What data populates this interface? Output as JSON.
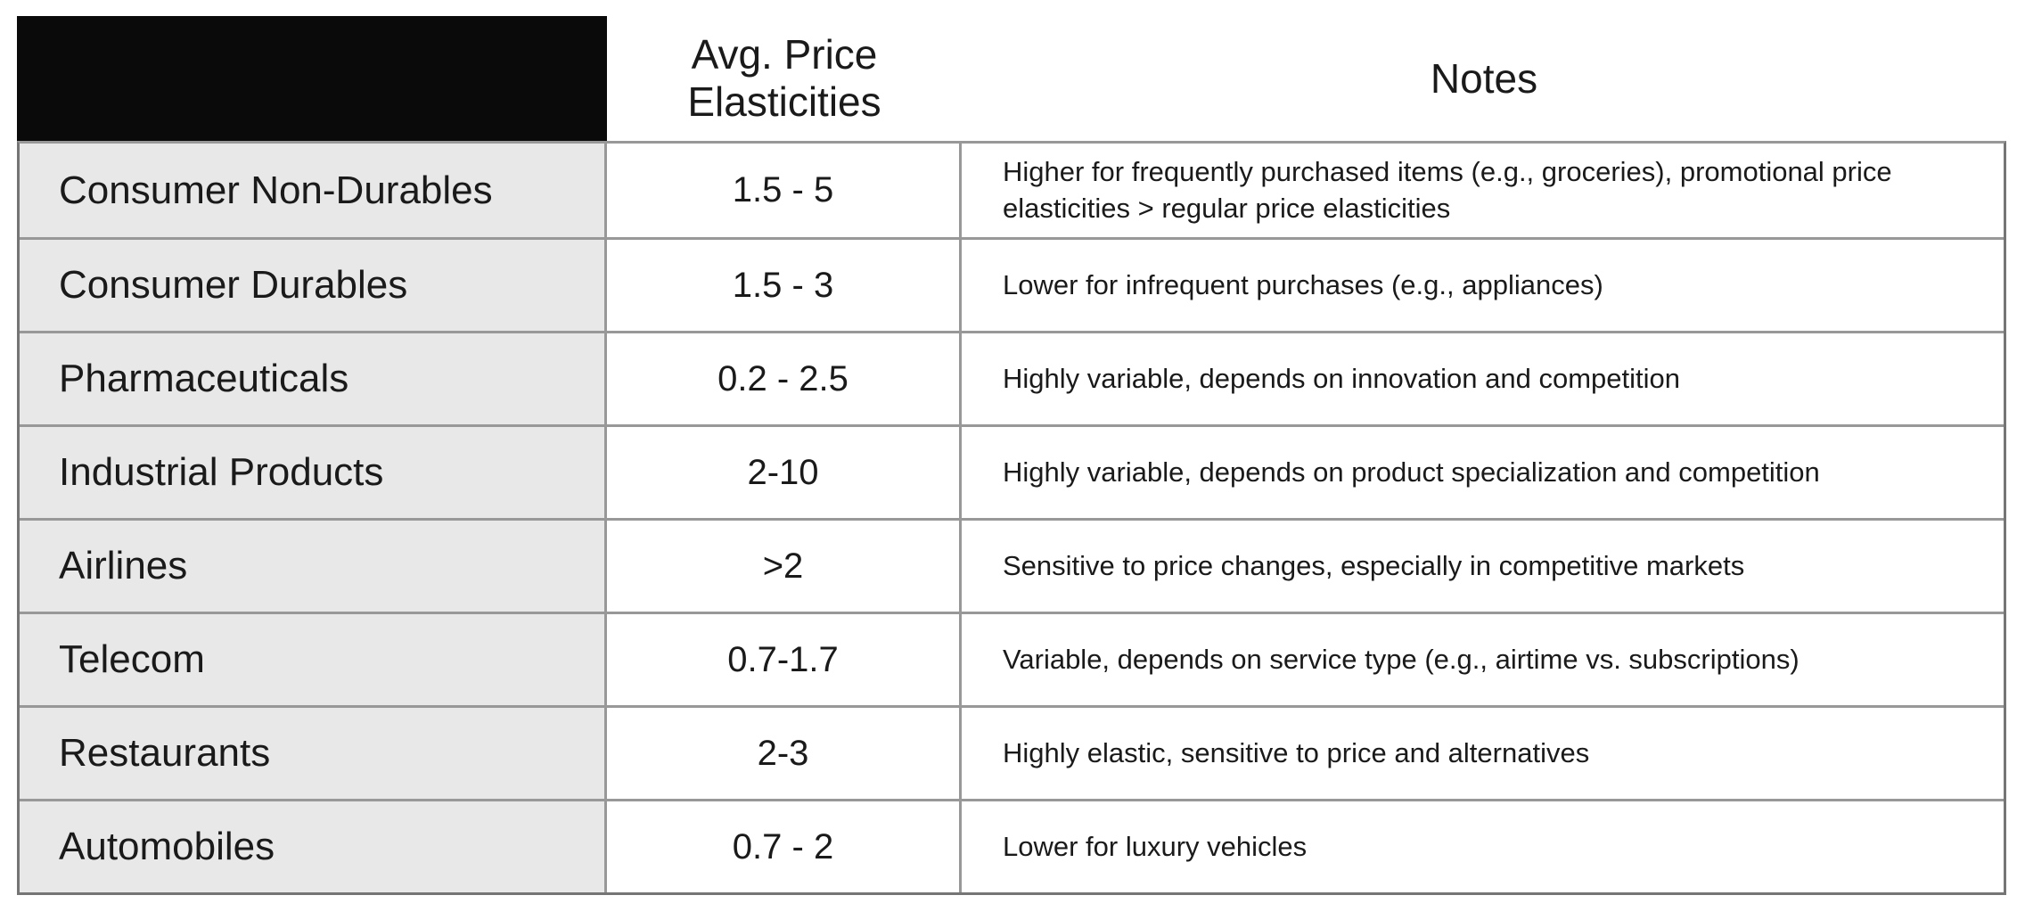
{
  "colors": {
    "header_fill": "#0a0a0a",
    "label_fill": "#e8e8e8",
    "border_inner": "#989898",
    "border_outer": "#757575",
    "text_color": "#1a1a1a",
    "page_bg": "#ffffff"
  },
  "table": {
    "header": {
      "industry_label": "",
      "elasticity_label": "Avg. Price Elasticities",
      "notes_label": "Notes"
    },
    "rows": [
      {
        "industry": "Consumer Non-Durables",
        "elasticity": "1.5 - 5",
        "notes": "Higher for frequently purchased items (e.g., groceries), promotional price elasticities > regular price elasticities"
      },
      {
        "industry": "Consumer Durables",
        "elasticity": "1.5 - 3",
        "notes": "Lower for infrequent purchases (e.g., appliances)"
      },
      {
        "industry": "Pharmaceuticals",
        "elasticity": "0.2 - 2.5",
        "notes": "Highly variable, depends on innovation and competition"
      },
      {
        "industry": "Industrial Products",
        "elasticity": "2-10",
        "notes": "Highly variable, depends on product specialization and competition"
      },
      {
        "industry": "Airlines",
        "elasticity": ">2",
        "notes": "Sensitive to price changes, especially in competitive markets"
      },
      {
        "industry": "Telecom",
        "elasticity": "0.7-1.7",
        "notes": "Variable, depends on service type (e.g., airtime vs. subscriptions)"
      },
      {
        "industry": "Restaurants",
        "elasticity": "2-3",
        "notes": "Highly elastic, sensitive to price and alternatives"
      },
      {
        "industry": "Automobiles",
        "elasticity": "0.7 - 2",
        "notes": "Lower for luxury vehicles"
      }
    ]
  }
}
